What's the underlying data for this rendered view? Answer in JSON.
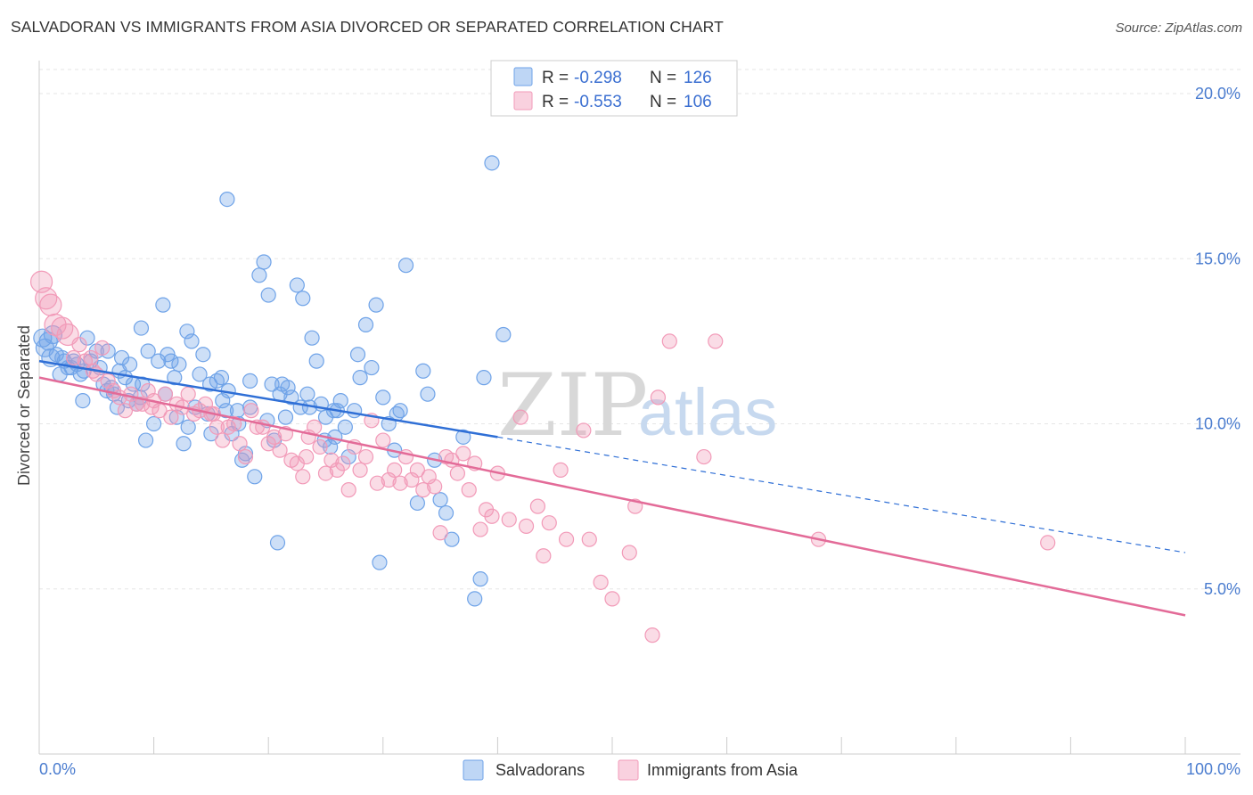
{
  "header": {
    "title": "SALVADORAN VS IMMIGRANTS FROM ASIA DIVORCED OR SEPARATED CORRELATION CHART",
    "source": "Source: ZipAtlas.com"
  },
  "watermark": {
    "zip": "ZIP",
    "atlas": "atlas"
  },
  "legend_top": [
    {
      "r_label": "R =",
      "r_value": "-0.298",
      "n_label": "N =",
      "n_value": "126",
      "color": "#6fa3e8"
    },
    {
      "r_label": "R =",
      "r_value": "-0.553",
      "n_label": "N =",
      "n_value": "106",
      "color": "#f29ab8"
    }
  ],
  "chart_data": {
    "type": "scatter",
    "title": "SALVADORAN VS IMMIGRANTS FROM ASIA DIVORCED OR SEPARATED CORRELATION CHART",
    "xlabel": "",
    "ylabel": "Divorced or Separated",
    "xlim": [
      0,
      100
    ],
    "ylim": [
      0,
      21
    ],
    "x_tick_labels": [
      "0.0%",
      "100.0%"
    ],
    "y_ticks": [
      5,
      10,
      15,
      20
    ],
    "y_tick_labels": [
      "5.0%",
      "10.0%",
      "15.0%",
      "20.0%"
    ],
    "grid": true,
    "legend_position": "top-center",
    "series": [
      {
        "name": "Salvadorans",
        "color": "#6fa3e8",
        "r": -0.298,
        "n": 126,
        "trend": {
          "x": [
            0,
            40
          ],
          "y": [
            11.9,
            9.6
          ],
          "dashed_extension": {
            "x": [
              40,
              100
            ],
            "y": [
              9.6,
              6.1
            ]
          }
        },
        "points": [
          [
            0.3,
            12.6
          ],
          [
            0.5,
            12.3
          ],
          [
            0.8,
            12.5
          ],
          [
            1.0,
            12.0
          ],
          [
            1.2,
            12.7
          ],
          [
            1.5,
            12.1
          ],
          [
            1.8,
            11.5
          ],
          [
            2.0,
            12.0
          ],
          [
            2.2,
            11.9
          ],
          [
            2.5,
            11.7
          ],
          [
            2.8,
            11.7
          ],
          [
            3.0,
            11.9
          ],
          [
            3.3,
            11.8
          ],
          [
            3.6,
            11.5
          ],
          [
            3.9,
            11.6
          ],
          [
            4.2,
            12.6
          ],
          [
            4.5,
            11.9
          ],
          [
            5.0,
            12.2
          ],
          [
            5.3,
            11.7
          ],
          [
            5.6,
            11.2
          ],
          [
            6.0,
            12.2
          ],
          [
            6.5,
            10.9
          ],
          [
            6.8,
            10.5
          ],
          [
            7.0,
            11.6
          ],
          [
            7.5,
            11.4
          ],
          [
            7.8,
            10.7
          ],
          [
            8.2,
            11.2
          ],
          [
            8.5,
            10.6
          ],
          [
            8.8,
            10.8
          ],
          [
            9.0,
            11.2
          ],
          [
            9.5,
            12.2
          ],
          [
            10.0,
            10.0
          ],
          [
            10.4,
            11.9
          ],
          [
            10.8,
            13.6
          ],
          [
            11.2,
            12.1
          ],
          [
            11.5,
            11.9
          ],
          [
            11.8,
            11.4
          ],
          [
            12.2,
            11.8
          ],
          [
            12.6,
            9.4
          ],
          [
            12.9,
            12.8
          ],
          [
            13.3,
            12.5
          ],
          [
            13.6,
            10.5
          ],
          [
            14.0,
            11.5
          ],
          [
            14.3,
            12.1
          ],
          [
            14.7,
            10.3
          ],
          [
            15.0,
            9.7
          ],
          [
            15.5,
            11.3
          ],
          [
            16.0,
            10.7
          ],
          [
            16.5,
            11.0
          ],
          [
            16.8,
            9.7
          ],
          [
            17.3,
            10.4
          ],
          [
            17.7,
            8.9
          ],
          [
            18.0,
            9.1
          ],
          [
            18.4,
            11.3
          ],
          [
            18.8,
            8.4
          ],
          [
            19.2,
            14.5
          ],
          [
            19.6,
            14.9
          ],
          [
            20.0,
            13.9
          ],
          [
            20.5,
            9.5
          ],
          [
            21.0,
            10.9
          ],
          [
            21.5,
            10.2
          ],
          [
            22.0,
            10.8
          ],
          [
            22.5,
            14.2
          ],
          [
            23.0,
            13.8
          ],
          [
            23.4,
            10.9
          ],
          [
            23.8,
            12.6
          ],
          [
            24.2,
            11.9
          ],
          [
            24.6,
            10.6
          ],
          [
            25.0,
            10.2
          ],
          [
            25.4,
            9.3
          ],
          [
            25.8,
            9.6
          ],
          [
            26.3,
            10.7
          ],
          [
            26.7,
            9.9
          ],
          [
            27.0,
            9.0
          ],
          [
            27.5,
            10.4
          ],
          [
            28.0,
            11.4
          ],
          [
            28.5,
            13.0
          ],
          [
            29.0,
            11.7
          ],
          [
            29.4,
            13.6
          ],
          [
            30.0,
            10.8
          ],
          [
            30.5,
            10.0
          ],
          [
            31.0,
            9.2
          ],
          [
            31.5,
            10.4
          ],
          [
            32.0,
            14.8
          ],
          [
            33.0,
            7.6
          ],
          [
            33.5,
            11.6
          ],
          [
            34.5,
            8.9
          ],
          [
            35.5,
            7.3
          ],
          [
            36.0,
            6.5
          ],
          [
            37.0,
            9.6
          ],
          [
            38.0,
            4.7
          ],
          [
            38.5,
            5.3
          ],
          [
            38.8,
            11.4
          ],
          [
            39.5,
            17.9
          ],
          [
            40.5,
            12.7
          ],
          [
            16.4,
            16.8
          ],
          [
            18.4,
            10.5
          ],
          [
            20.3,
            11.2
          ],
          [
            21.7,
            11.1
          ],
          [
            22.8,
            10.5
          ],
          [
            3.8,
            10.7
          ],
          [
            5.9,
            11.0
          ],
          [
            7.2,
            12.0
          ],
          [
            7.9,
            11.8
          ],
          [
            8.9,
            12.9
          ],
          [
            9.3,
            9.5
          ],
          [
            11.0,
            10.9
          ],
          [
            12.0,
            10.2
          ],
          [
            13.0,
            9.9
          ],
          [
            14.9,
            11.2
          ],
          [
            15.9,
            11.4
          ],
          [
            16.3,
            10.4
          ],
          [
            17.4,
            10.0
          ],
          [
            19.9,
            10.1
          ],
          [
            20.8,
            6.4
          ],
          [
            23.6,
            10.5
          ],
          [
            24.9,
            9.5
          ],
          [
            26.0,
            10.4
          ],
          [
            27.8,
            12.1
          ],
          [
            31.2,
            10.3
          ],
          [
            33.9,
            10.9
          ],
          [
            35.0,
            7.7
          ],
          [
            29.7,
            5.8
          ],
          [
            25.7,
            10.4
          ],
          [
            21.2,
            11.2
          ],
          [
            6.3,
            11.1
          ]
        ]
      },
      {
        "name": "Immigrants from Asia",
        "color": "#f29ab8",
        "r": -0.553,
        "n": 106,
        "trend": {
          "x": [
            0,
            100
          ],
          "y": [
            11.4,
            4.2
          ]
        },
        "points": [
          [
            0.2,
            14.3
          ],
          [
            0.6,
            13.8
          ],
          [
            1.0,
            13.6
          ],
          [
            1.4,
            13.0
          ],
          [
            2.0,
            12.9
          ],
          [
            2.5,
            12.7
          ],
          [
            3.0,
            12.0
          ],
          [
            3.5,
            12.4
          ],
          [
            4.0,
            11.9
          ],
          [
            4.5,
            12.0
          ],
          [
            5.0,
            11.5
          ],
          [
            5.5,
            12.3
          ],
          [
            6.0,
            11.3
          ],
          [
            6.5,
            11.0
          ],
          [
            7.0,
            10.8
          ],
          [
            7.5,
            10.4
          ],
          [
            8.0,
            10.9
          ],
          [
            8.5,
            10.6
          ],
          [
            9.0,
            10.6
          ],
          [
            9.5,
            11.0
          ],
          [
            10.0,
            10.7
          ],
          [
            10.5,
            10.4
          ],
          [
            11.0,
            10.9
          ],
          [
            11.5,
            10.2
          ],
          [
            12.0,
            10.6
          ],
          [
            12.5,
            10.5
          ],
          [
            13.0,
            10.9
          ],
          [
            13.5,
            10.3
          ],
          [
            14.0,
            10.4
          ],
          [
            14.5,
            10.6
          ],
          [
            15.0,
            10.3
          ],
          [
            15.5,
            9.9
          ],
          [
            16.0,
            9.5
          ],
          [
            16.5,
            9.9
          ],
          [
            17.0,
            10.0
          ],
          [
            17.5,
            9.4
          ],
          [
            18.0,
            9.0
          ],
          [
            18.5,
            10.4
          ],
          [
            19.0,
            9.9
          ],
          [
            19.5,
            9.9
          ],
          [
            20.0,
            9.4
          ],
          [
            20.5,
            9.6
          ],
          [
            21.0,
            9.2
          ],
          [
            21.5,
            9.7
          ],
          [
            22.0,
            8.9
          ],
          [
            22.5,
            8.8
          ],
          [
            23.0,
            8.4
          ],
          [
            23.5,
            9.6
          ],
          [
            24.0,
            9.9
          ],
          [
            24.5,
            9.3
          ],
          [
            25.0,
            8.5
          ],
          [
            25.5,
            8.9
          ],
          [
            26.0,
            8.6
          ],
          [
            26.5,
            8.8
          ],
          [
            27.0,
            8.0
          ],
          [
            27.5,
            9.3
          ],
          [
            28.0,
            8.6
          ],
          [
            28.5,
            9.0
          ],
          [
            29.0,
            10.1
          ],
          [
            29.5,
            8.2
          ],
          [
            30.0,
            9.5
          ],
          [
            30.5,
            8.3
          ],
          [
            31.0,
            8.6
          ],
          [
            31.5,
            8.2
          ],
          [
            32.0,
            9.0
          ],
          [
            32.5,
            8.3
          ],
          [
            33.0,
            8.6
          ],
          [
            33.5,
            8.0
          ],
          [
            34.0,
            8.4
          ],
          [
            34.5,
            8.1
          ],
          [
            35.0,
            6.7
          ],
          [
            35.5,
            9.0
          ],
          [
            36.0,
            8.9
          ],
          [
            36.5,
            8.5
          ],
          [
            37.0,
            9.1
          ],
          [
            37.5,
            8.0
          ],
          [
            38.0,
            8.8
          ],
          [
            38.5,
            6.8
          ],
          [
            39.0,
            7.4
          ],
          [
            39.5,
            7.2
          ],
          [
            40.0,
            8.5
          ],
          [
            41.0,
            7.1
          ],
          [
            42.0,
            10.2
          ],
          [
            42.5,
            6.9
          ],
          [
            43.5,
            7.5
          ],
          [
            44.0,
            6.0
          ],
          [
            44.5,
            7.0
          ],
          [
            45.5,
            8.6
          ],
          [
            46.0,
            6.5
          ],
          [
            47.5,
            9.8
          ],
          [
            48.0,
            6.5
          ],
          [
            49.0,
            5.2
          ],
          [
            50.0,
            4.7
          ],
          [
            51.5,
            6.1
          ],
          [
            52.0,
            7.5
          ],
          [
            53.5,
            3.6
          ],
          [
            54.0,
            10.8
          ],
          [
            55.0,
            12.5
          ],
          [
            58.0,
            9.0
          ],
          [
            59.0,
            12.5
          ],
          [
            68.0,
            6.5
          ],
          [
            88.0,
            6.4
          ],
          [
            4.7,
            11.6
          ],
          [
            9.8,
            10.5
          ],
          [
            15.2,
            10.3
          ],
          [
            23.3,
            9.0
          ]
        ]
      }
    ]
  },
  "bottom_legend": [
    {
      "label": "Salvadorans",
      "color": "#6fa3e8"
    },
    {
      "label": "Immigrants from Asia",
      "color": "#f29ab8"
    }
  ]
}
